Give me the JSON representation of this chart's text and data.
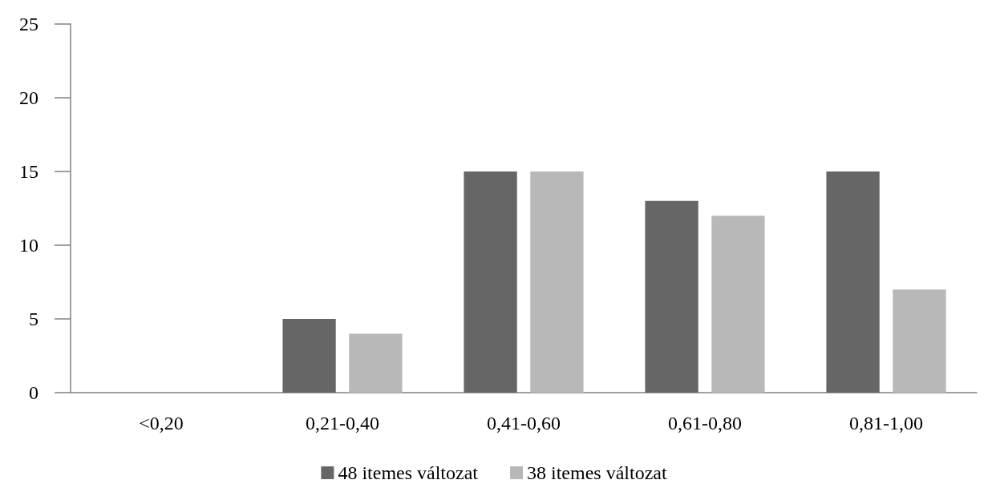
{
  "chart_data": {
    "type": "bar",
    "categories": [
      "<0,20",
      "0,21-0,40",
      "0,41-0,60",
      "0,61-0,80",
      "0,81-1,00"
    ],
    "series": [
      {
        "name": "48 itemes változat",
        "color": "#666666",
        "values": [
          0,
          5,
          15,
          13,
          15
        ]
      },
      {
        "name": "38 itemes változat",
        "color": "#b8b8b8",
        "values": [
          0,
          4,
          15,
          12,
          7
        ]
      }
    ],
    "ylim": [
      0,
      25
    ],
    "yticks": [
      0,
      5,
      10,
      15,
      20,
      25
    ],
    "grid": false,
    "legend": "bottom"
  }
}
